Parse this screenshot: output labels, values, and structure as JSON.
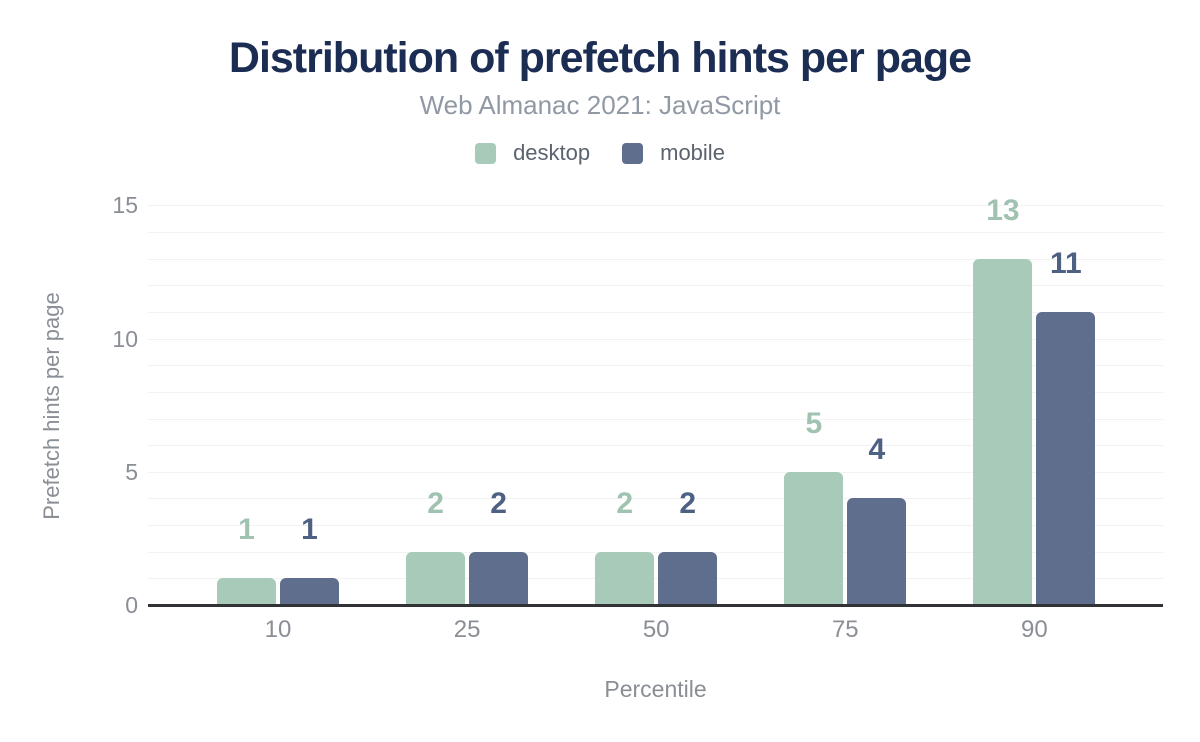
{
  "chart_data": {
    "type": "bar",
    "title": "Distribution of prefetch hints per page",
    "subtitle": "Web Almanac 2021: JavaScript",
    "xlabel": "Percentile",
    "ylabel": "Prefetch hints per page",
    "categories": [
      "10",
      "25",
      "50",
      "75",
      "90"
    ],
    "series": [
      {
        "name": "desktop",
        "color": "#a8cab8",
        "label_color": "#9fc3b0",
        "values": [
          1,
          2,
          2,
          5,
          13
        ]
      },
      {
        "name": "mobile",
        "color": "#5f6e8c",
        "label_color": "#4e6183",
        "values": [
          1,
          2,
          2,
          4,
          11
        ]
      }
    ],
    "ylim": [
      0,
      15
    ],
    "yticks": [
      0,
      5,
      10,
      15
    ],
    "minor_grid_step": 1,
    "grid": true,
    "legend_position": "top",
    "data_labels": true,
    "colors": {
      "title": "#1c2d53",
      "subtitle": "#9199a4",
      "legend_text": "#5c636e",
      "axis_text": "#8a8e95",
      "grid": "#f2f2f3",
      "axis_line": "#303236",
      "background": "#ffffff"
    }
  }
}
